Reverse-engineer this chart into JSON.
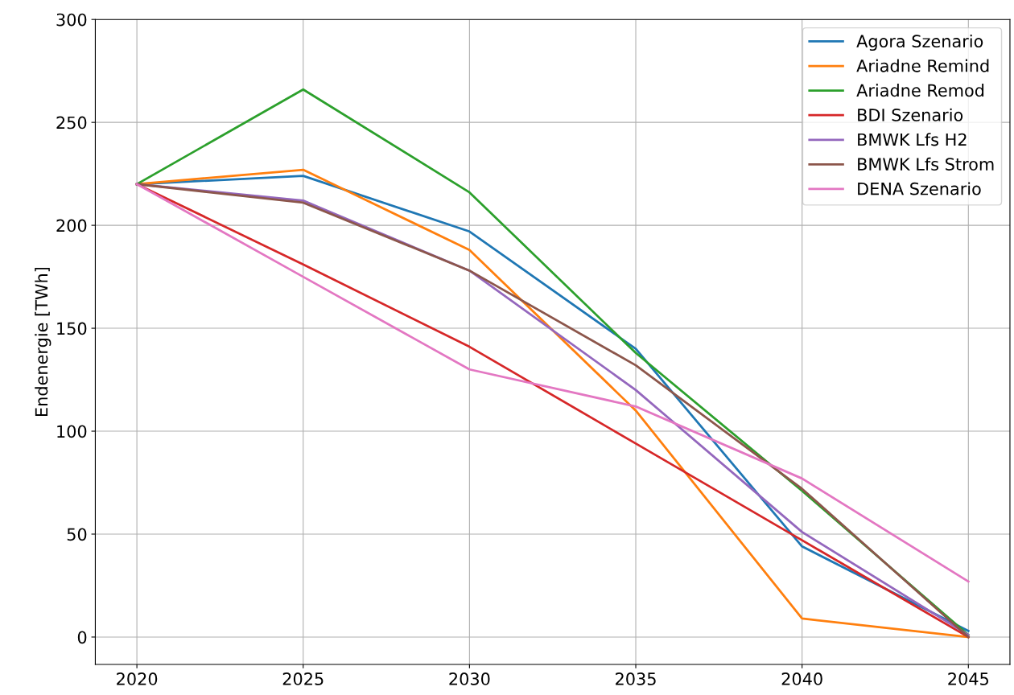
{
  "chart_data": {
    "type": "line",
    "ylabel": "Endenergie [TWh]",
    "x": [
      2020,
      2025,
      2030,
      2035,
      2040,
      2045
    ],
    "xlim": [
      2018.75,
      2046.25
    ],
    "ylim": [
      -13.3,
      300
    ],
    "xticks": [
      2020,
      2025,
      2030,
      2035,
      2040,
      2045
    ],
    "yticks": [
      0,
      50,
      100,
      150,
      200,
      250,
      300
    ],
    "grid": true,
    "legend": "top right",
    "marker": "none",
    "line_style": "solid",
    "series": [
      {
        "name": "Agora Szenario",
        "color": "#1f77b4",
        "values": [
          220,
          224,
          197,
          140,
          44,
          3
        ]
      },
      {
        "name": "Ariadne Remind",
        "color": "#ff7f0e",
        "values": [
          220,
          227,
          188,
          110,
          9,
          0
        ]
      },
      {
        "name": "Ariadne Remod",
        "color": "#2ca02c",
        "values": [
          220,
          266,
          216,
          138,
          71,
          1
        ]
      },
      {
        "name": "BDI Szenario",
        "color": "#d62728",
        "values": [
          220,
          181,
          141,
          94,
          47,
          0
        ]
      },
      {
        "name": "BMWK Lfs H2",
        "color": "#9467bd",
        "values": [
          220,
          212,
          178,
          120,
          51,
          1
        ]
      },
      {
        "name": "BMWK Lfs Strom",
        "color": "#8c564b",
        "values": [
          220,
          211,
          178,
          132,
          72,
          0
        ]
      },
      {
        "name": "DENA Szenario",
        "color": "#e377c2",
        "values": [
          220,
          175,
          130,
          112,
          77,
          27
        ]
      }
    ]
  }
}
